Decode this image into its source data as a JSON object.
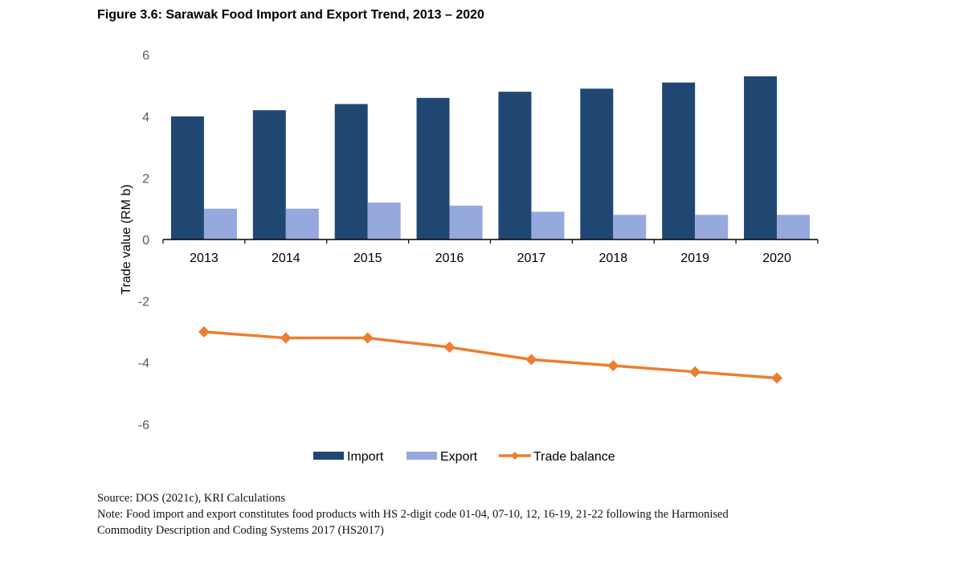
{
  "figure": {
    "title": "Figure 3.6: Sarawak Food Import and Export Trend, 2013 – 2020"
  },
  "chart_data": {
    "type": "bar",
    "title": "Figure 3.6: Sarawak Food Import and Export Trend, 2013 – 2020",
    "xlabel": "",
    "ylabel": "Trade value (RM b)",
    "ylim": [
      -6,
      6
    ],
    "yticks": [
      -6,
      -4,
      -2,
      0,
      2,
      4,
      6
    ],
    "ytick_labels": [
      "-6",
      "-4",
      "-2",
      "0",
      "2",
      "4",
      "6"
    ],
    "grid": false,
    "legend_position": "bottom",
    "categories": [
      "2013",
      "2014",
      "2015",
      "2016",
      "2017",
      "2018",
      "2019",
      "2020"
    ],
    "series": [
      {
        "name": "Import",
        "type": "bar",
        "color": "#1F4772",
        "values": [
          4.0,
          4.2,
          4.4,
          4.6,
          4.8,
          4.9,
          5.1,
          5.3
        ]
      },
      {
        "name": "Export",
        "type": "bar",
        "color": "#96A9DE",
        "values": [
          1.0,
          1.0,
          1.2,
          1.1,
          0.9,
          0.8,
          0.8,
          0.8
        ]
      },
      {
        "name": "Trade balance",
        "type": "line",
        "marker": "diamond",
        "color": "#ED7D31",
        "values": [
          -3.0,
          -3.2,
          -3.2,
          -3.5,
          -3.9,
          -4.1,
          -4.3,
          -4.5
        ]
      }
    ]
  },
  "footer": {
    "source": "Source: DOS (2021c), KRI Calculations",
    "note_line1": "Note: Food import and export constitutes food products with HS 2-digit code 01-04, 07-10, 12, 16-19, 21-22 following the Harmonised",
    "note_line2": "Commodity Description and Coding Systems 2017 (HS2017)"
  }
}
